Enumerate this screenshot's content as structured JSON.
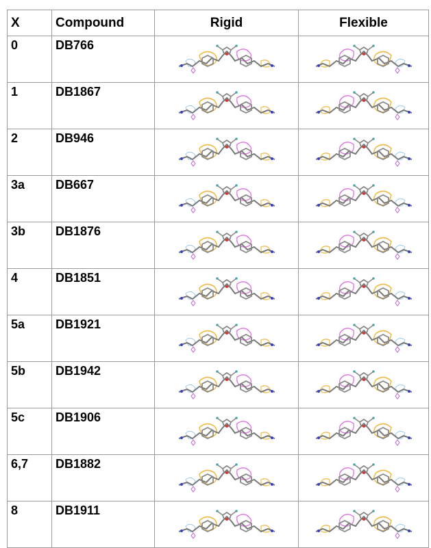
{
  "table": {
    "header": [
      "X",
      "Compound",
      "Rigid",
      "Flexible"
    ],
    "rows": [
      [
        "0",
        "DB766"
      ],
      [
        "1",
        "DB1867"
      ],
      [
        "2",
        "DB946"
      ],
      [
        "3a",
        "DB667"
      ],
      [
        "3b",
        "DB1876"
      ],
      [
        "4",
        "DB1851"
      ],
      [
        "5a",
        "DB1921"
      ],
      [
        "5b",
        "DB1942"
      ],
      [
        "5c",
        "DB1906"
      ],
      [
        "6,7",
        "DB1882"
      ],
      [
        "8",
        "DB1911"
      ]
    ]
  }
}
